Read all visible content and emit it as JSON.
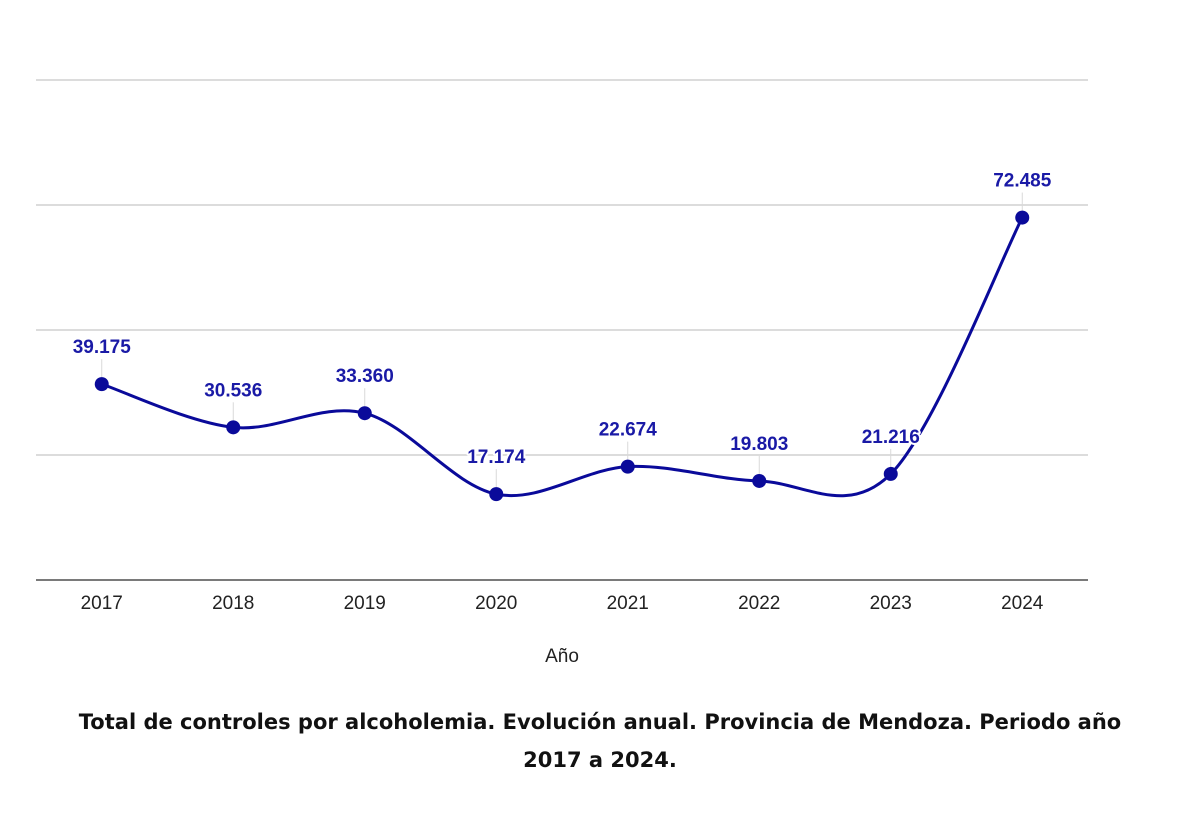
{
  "chart_data": {
    "type": "line",
    "title": "",
    "xlabel": "Año",
    "ylabel": "",
    "categories": [
      "2017",
      "2018",
      "2019",
      "2020",
      "2021",
      "2022",
      "2023",
      "2024"
    ],
    "series": [
      {
        "name": "Total de controles por alcoholemia",
        "values": [
          39175,
          30536,
          33360,
          17174,
          22674,
          19803,
          21216,
          72485
        ],
        "labels": [
          "39.175",
          "30.536",
          "33.360",
          "17.174",
          "22.674",
          "19.803",
          "21.216",
          "72.485"
        ],
        "color": "#0a0a9a"
      }
    ],
    "ylim": [
      0,
      100000
    ],
    "y_gridlines": [
      25000,
      50000,
      75000,
      100000
    ],
    "y_tick_labels_visible": false,
    "grid": true,
    "smooth": true,
    "legend": "none"
  },
  "caption": {
    "line1": "Total de controles por alcoholemia. Evolución anual. Provincia de Mendoza. Periodo año",
    "line2": "2017 a 2024."
  }
}
